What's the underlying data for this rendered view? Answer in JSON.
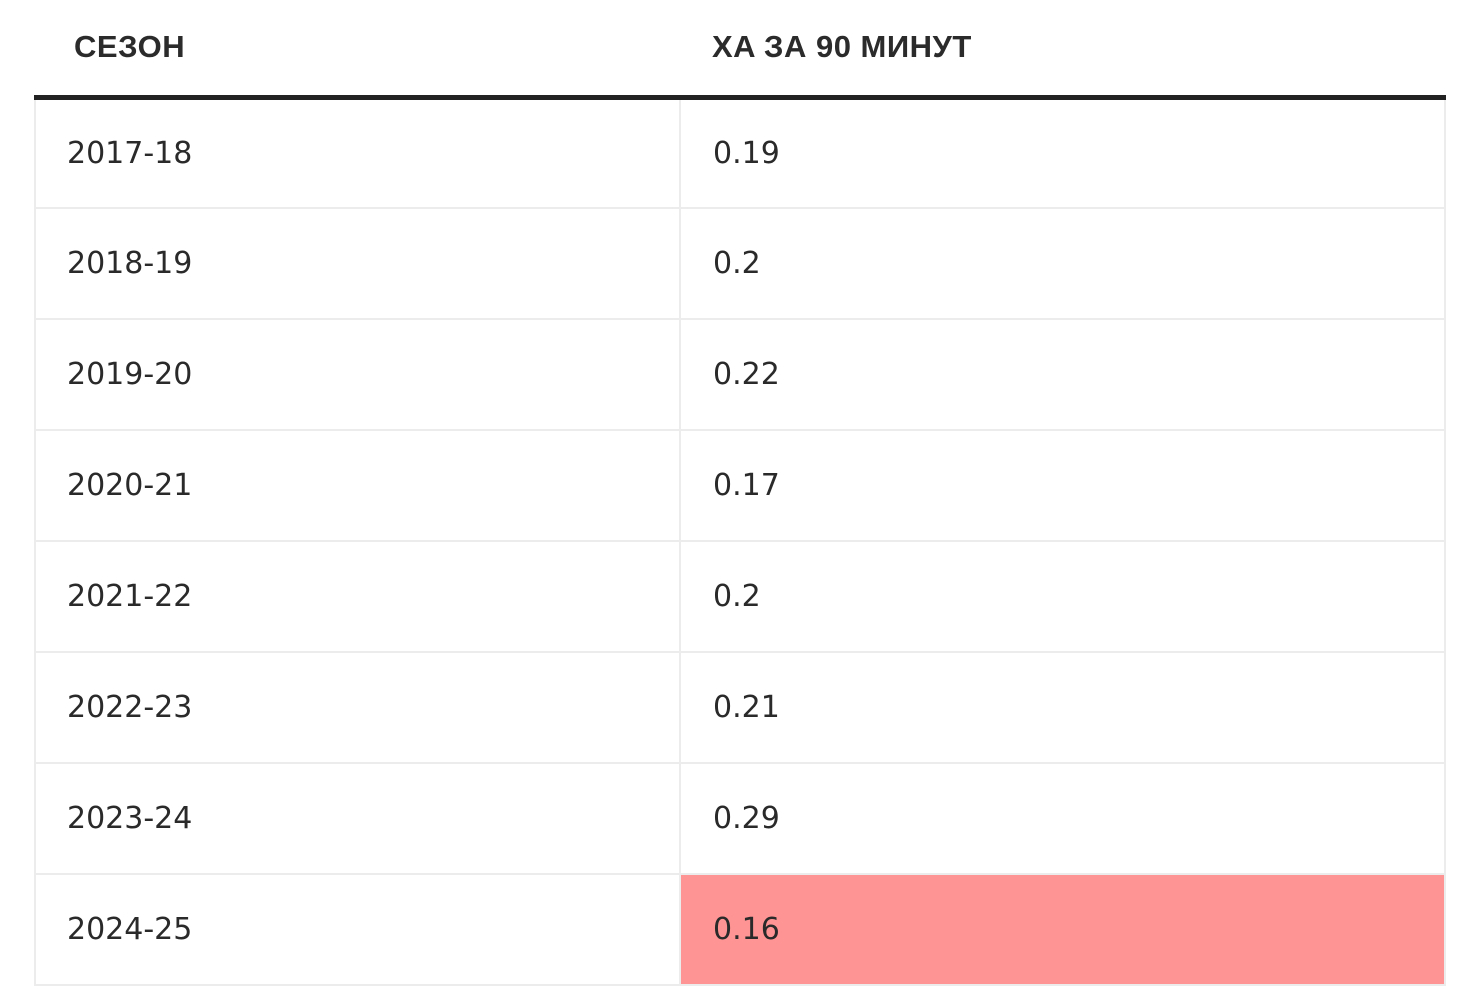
{
  "table": {
    "headers": [
      "СЕЗОН",
      "XA ЗА 90 МИНУТ"
    ],
    "rows": [
      {
        "season": "2017-18",
        "value": "0.19",
        "highlight": false
      },
      {
        "season": "2018-19",
        "value": "0.2",
        "highlight": false
      },
      {
        "season": "2019-20",
        "value": "0.22",
        "highlight": false
      },
      {
        "season": "2020-21",
        "value": "0.17",
        "highlight": false
      },
      {
        "season": "2021-22",
        "value": "0.2",
        "highlight": false
      },
      {
        "season": "2022-23",
        "value": "0.21",
        "highlight": false
      },
      {
        "season": "2023-24",
        "value": "0.29",
        "highlight": false
      },
      {
        "season": "2024-25",
        "value": "0.16",
        "highlight": true
      }
    ],
    "highlight_color": "#ff9494",
    "header_rule_color": "#222222",
    "grid_color": "#ececec"
  }
}
